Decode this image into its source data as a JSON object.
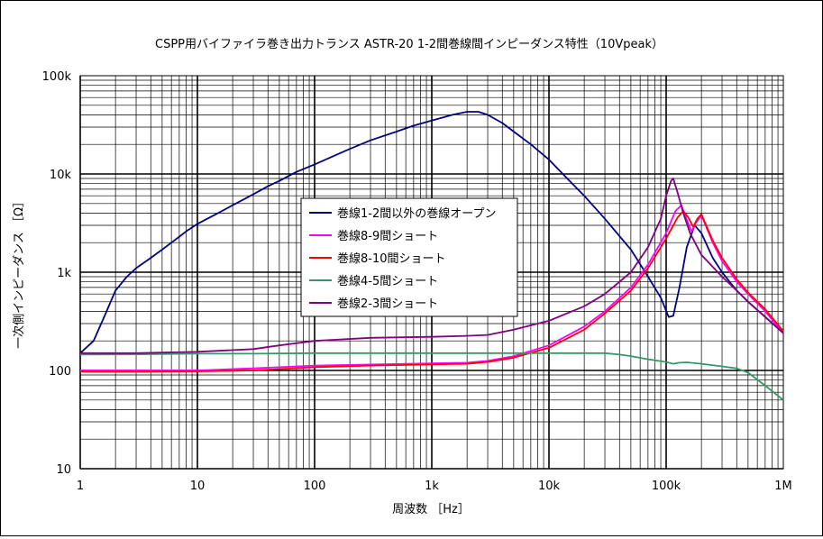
{
  "chart_data": {
    "type": "line",
    "title": "CSPP用バイファイラ巻き出力トランス ASTR-20 1-2間巻線間インピーダンス特性（10Vpeak）",
    "xlabel": "周波数 ［Hz］",
    "ylabel": "一次側インピーダンス ［Ω］",
    "x_scale": "log",
    "y_scale": "log",
    "xlim": [
      1,
      1000000
    ],
    "ylim": [
      10,
      100000
    ],
    "grid": true,
    "legend_position": "center",
    "x_ticks": [
      {
        "v": 1,
        "label": "1"
      },
      {
        "v": 10,
        "label": "10"
      },
      {
        "v": 100,
        "label": "100"
      },
      {
        "v": 1000,
        "label": "1k"
      },
      {
        "v": 10000,
        "label": "10k"
      },
      {
        "v": 100000,
        "label": "100k"
      },
      {
        "v": 1000000,
        "label": "1M"
      }
    ],
    "y_ticks": [
      {
        "v": 10,
        "label": "10"
      },
      {
        "v": 100,
        "label": "100"
      },
      {
        "v": 1000,
        "label": "1k"
      },
      {
        "v": 10000,
        "label": "10k"
      },
      {
        "v": 100000,
        "label": "100k"
      }
    ],
    "series": [
      {
        "name": "巻線1-2間以外の巻線オープン",
        "color": "#000080",
        "points": [
          [
            1,
            150
          ],
          [
            1.3,
            200
          ],
          [
            1.6,
            350
          ],
          [
            2,
            650
          ],
          [
            2.5,
            900
          ],
          [
            3,
            1100
          ],
          [
            4,
            1400
          ],
          [
            5,
            1700
          ],
          [
            6,
            2000
          ],
          [
            7,
            2300
          ],
          [
            8,
            2600
          ],
          [
            10,
            3100
          ],
          [
            15,
            4000
          ],
          [
            20,
            4800
          ],
          [
            30,
            6200
          ],
          [
            40,
            7500
          ],
          [
            50,
            8500
          ],
          [
            70,
            10500
          ],
          [
            100,
            12500
          ],
          [
            150,
            15500
          ],
          [
            200,
            18000
          ],
          [
            300,
            22000
          ],
          [
            500,
            27000
          ],
          [
            700,
            31000
          ],
          [
            1000,
            35000
          ],
          [
            1500,
            40000
          ],
          [
            2000,
            43000
          ],
          [
            2500,
            43000
          ],
          [
            3000,
            40000
          ],
          [
            4000,
            33000
          ],
          [
            5000,
            27000
          ],
          [
            7000,
            20000
          ],
          [
            10000,
            14000
          ],
          [
            15000,
            8500
          ],
          [
            20000,
            6000
          ],
          [
            30000,
            3500
          ],
          [
            50000,
            1700
          ],
          [
            70000,
            900
          ],
          [
            90000,
            550
          ],
          [
            105000,
            350
          ],
          [
            115000,
            360
          ],
          [
            130000,
            700
          ],
          [
            150000,
            1800
          ],
          [
            175000,
            3000
          ],
          [
            200000,
            2500
          ],
          [
            250000,
            1400
          ],
          [
            300000,
            1000
          ],
          [
            400000,
            650
          ],
          [
            500000,
            500
          ],
          [
            700000,
            350
          ],
          [
            1000000,
            240
          ]
        ]
      },
      {
        "name": "巻線8-9間ショート",
        "color": "#ff00ff",
        "points": [
          [
            1,
            100
          ],
          [
            3,
            100
          ],
          [
            10,
            100
          ],
          [
            30,
            105
          ],
          [
            100,
            112
          ],
          [
            300,
            115
          ],
          [
            1000,
            118
          ],
          [
            2000,
            120
          ],
          [
            3000,
            125
          ],
          [
            5000,
            140
          ],
          [
            10000,
            180
          ],
          [
            20000,
            280
          ],
          [
            30000,
            400
          ],
          [
            50000,
            700
          ],
          [
            70000,
            1200
          ],
          [
            100000,
            2500
          ],
          [
            120000,
            4200
          ],
          [
            135000,
            4800
          ],
          [
            150000,
            3400
          ],
          [
            165000,
            2600
          ],
          [
            180000,
            3200
          ],
          [
            200000,
            3800
          ],
          [
            250000,
            2000
          ],
          [
            300000,
            1300
          ],
          [
            400000,
            800
          ],
          [
            500000,
            600
          ],
          [
            700000,
            400
          ],
          [
            1000000,
            240
          ]
        ]
      },
      {
        "name": "巻線8-10間ショート",
        "color": "#ff0000",
        "points": [
          [
            1,
            97
          ],
          [
            3,
            97
          ],
          [
            10,
            98
          ],
          [
            30,
            100
          ],
          [
            100,
            108
          ],
          [
            300,
            112
          ],
          [
            1000,
            115
          ],
          [
            2000,
            117
          ],
          [
            3000,
            122
          ],
          [
            5000,
            135
          ],
          [
            10000,
            170
          ],
          [
            20000,
            260
          ],
          [
            30000,
            380
          ],
          [
            50000,
            650
          ],
          [
            70000,
            1100
          ],
          [
            100000,
            2200
          ],
          [
            125000,
            3600
          ],
          [
            140000,
            4200
          ],
          [
            155000,
            3600
          ],
          [
            170000,
            2900
          ],
          [
            185000,
            3500
          ],
          [
            200000,
            3900
          ],
          [
            250000,
            2100
          ],
          [
            300000,
            1400
          ],
          [
            400000,
            850
          ],
          [
            500000,
            620
          ],
          [
            700000,
            420
          ],
          [
            1000000,
            250
          ]
        ]
      },
      {
        "name": "巻線4-5間ショート",
        "color": "#339966",
        "points": [
          [
            1,
            145
          ],
          [
            3,
            146
          ],
          [
            10,
            148
          ],
          [
            30,
            148
          ],
          [
            100,
            150
          ],
          [
            300,
            150
          ],
          [
            1000,
            150
          ],
          [
            3000,
            150
          ],
          [
            10000,
            150
          ],
          [
            30000,
            150
          ],
          [
            40000,
            145
          ],
          [
            50000,
            140
          ],
          [
            70000,
            130
          ],
          [
            100000,
            122
          ],
          [
            115000,
            117
          ],
          [
            130000,
            120
          ],
          [
            150000,
            121
          ],
          [
            200000,
            117
          ],
          [
            300000,
            110
          ],
          [
            400000,
            105
          ],
          [
            500000,
            95
          ],
          [
            700000,
            70
          ],
          [
            1000000,
            50
          ]
        ]
      },
      {
        "name": "巻線2-3間ショート",
        "color": "#800080",
        "points": [
          [
            1,
            150
          ],
          [
            3,
            150
          ],
          [
            10,
            155
          ],
          [
            30,
            165
          ],
          [
            50,
            180
          ],
          [
            100,
            200
          ],
          [
            300,
            215
          ],
          [
            1000,
            220
          ],
          [
            2000,
            225
          ],
          [
            3000,
            230
          ],
          [
            5000,
            260
          ],
          [
            10000,
            320
          ],
          [
            20000,
            450
          ],
          [
            30000,
            600
          ],
          [
            50000,
            1000
          ],
          [
            70000,
            1800
          ],
          [
            90000,
            3500
          ],
          [
            100000,
            6000
          ],
          [
            110000,
            8500
          ],
          [
            115000,
            9000
          ],
          [
            125000,
            6500
          ],
          [
            140000,
            4000
          ],
          [
            160000,
            2500
          ],
          [
            200000,
            1500
          ],
          [
            300000,
            900
          ],
          [
            400000,
            650
          ],
          [
            500000,
            500
          ],
          [
            700000,
            350
          ],
          [
            1000000,
            240
          ]
        ]
      }
    ]
  }
}
